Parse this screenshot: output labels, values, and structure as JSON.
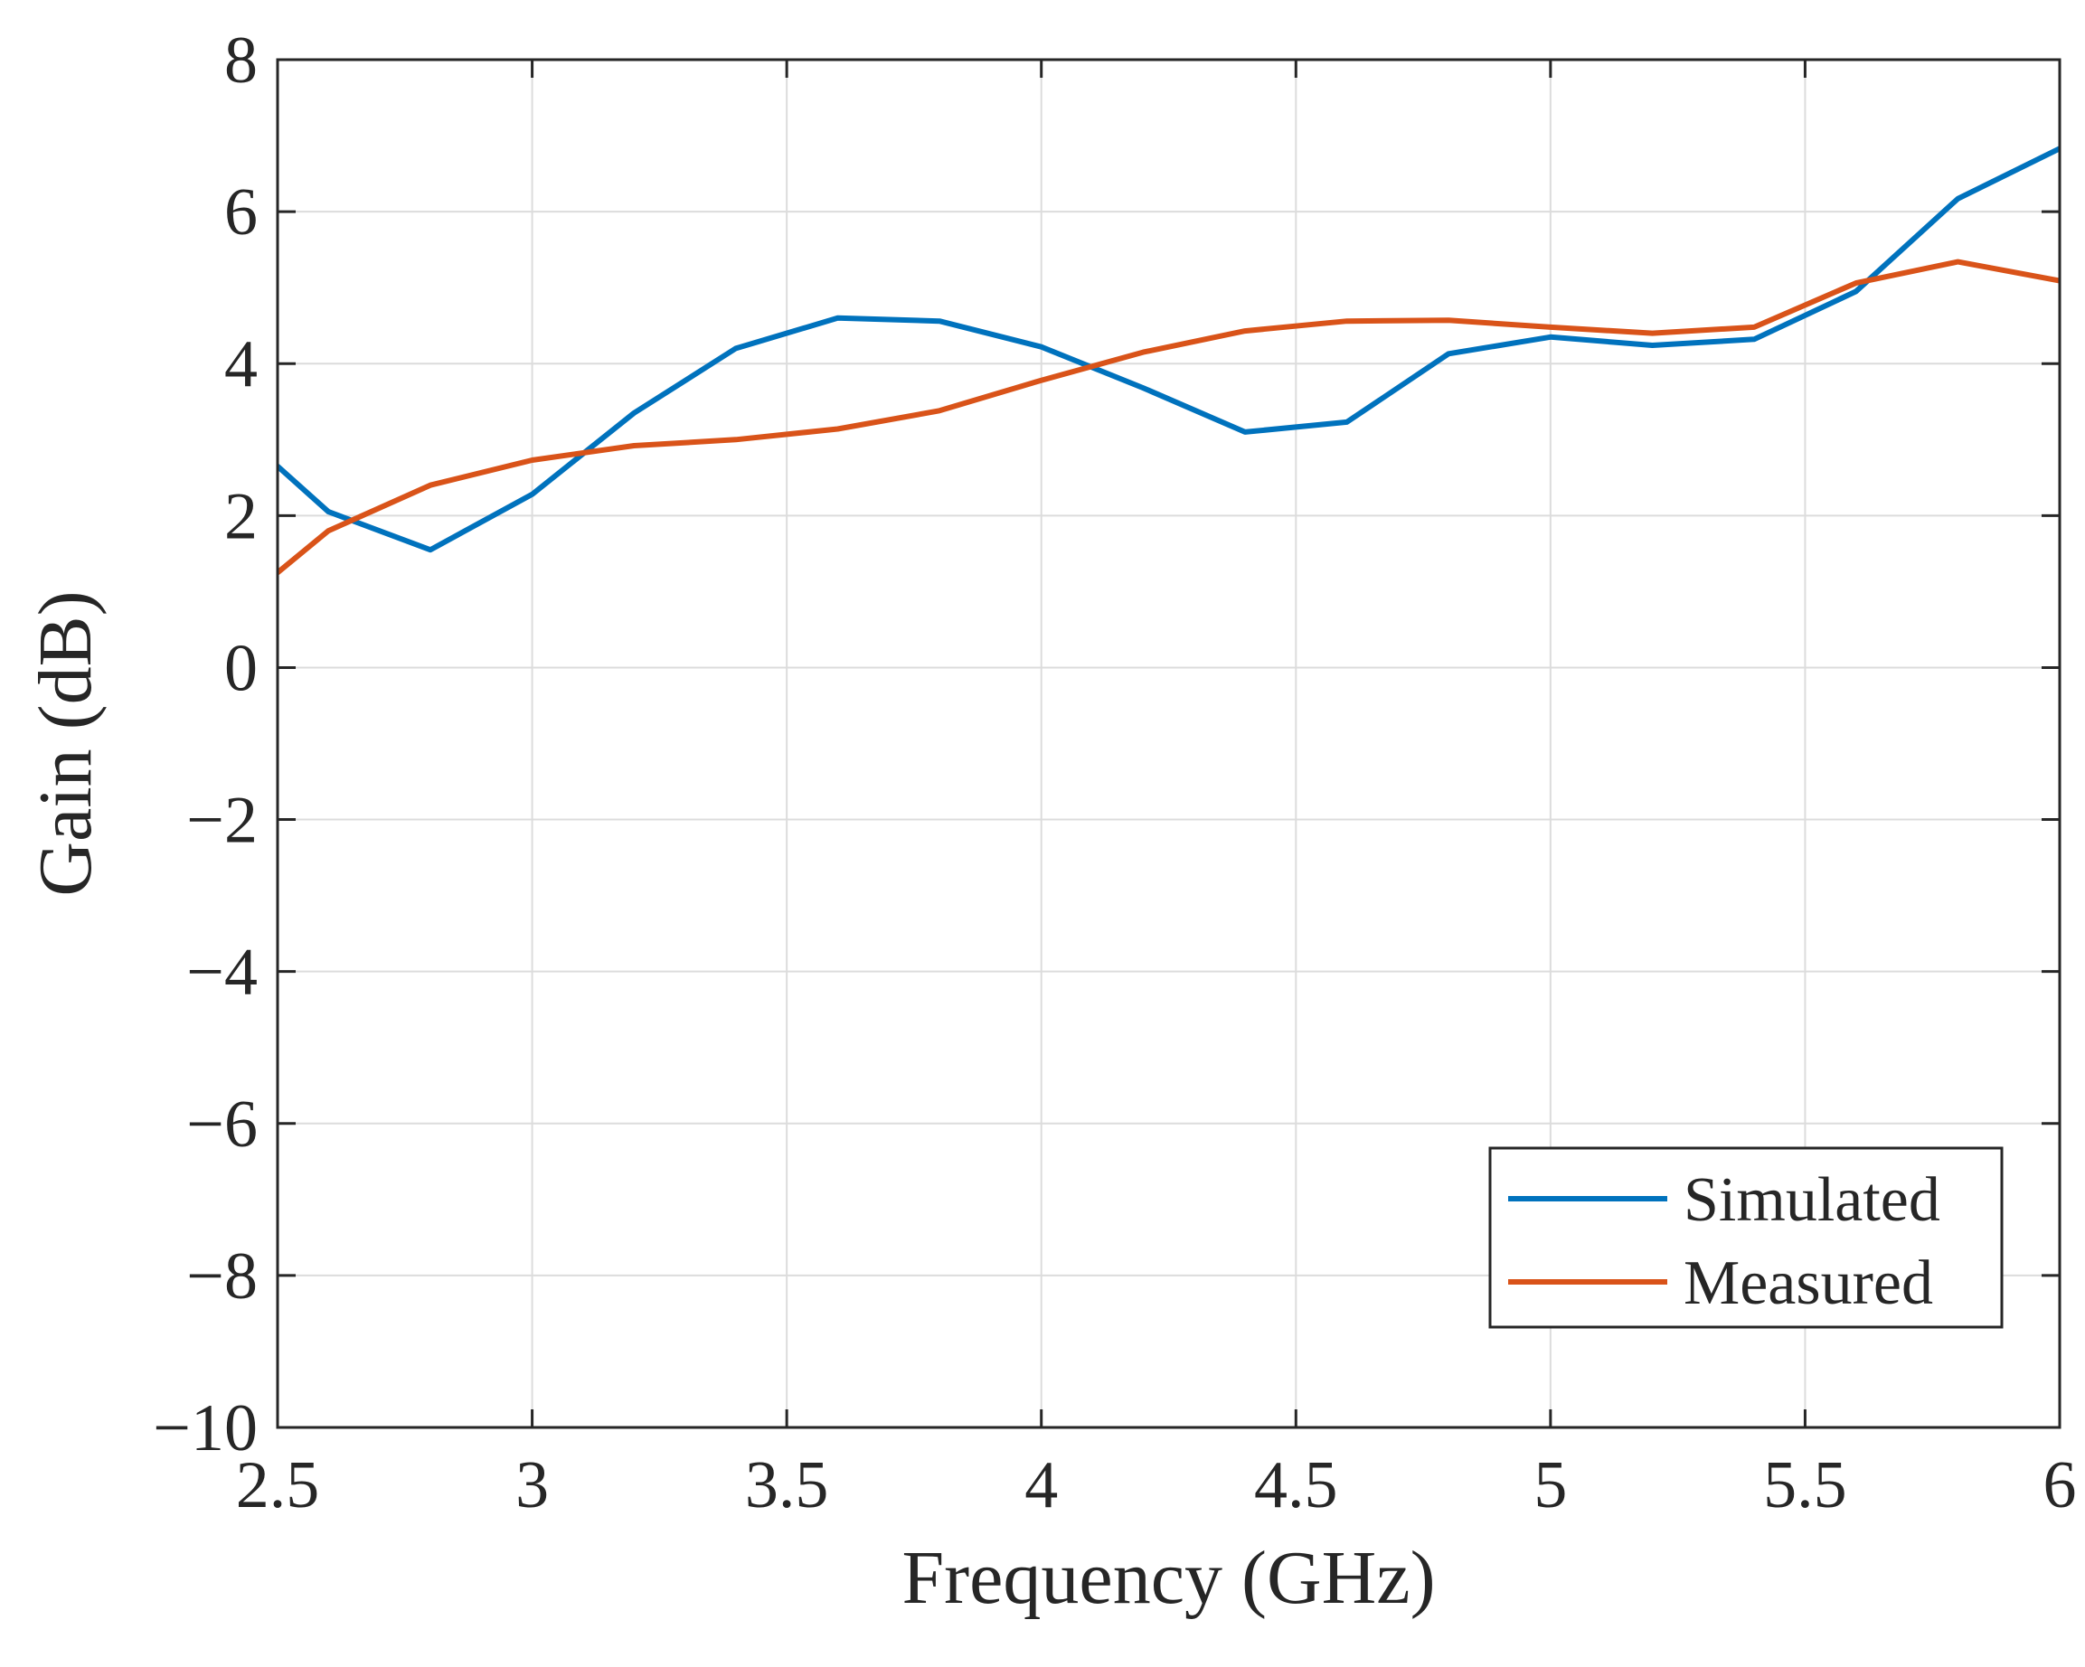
{
  "chart_data": {
    "type": "line",
    "title": "",
    "xlabel": "Frequency (GHz)",
    "ylabel": "Gain (dB)",
    "xlim": [
      2.5,
      6
    ],
    "ylim": [
      -10,
      8
    ],
    "grid": true,
    "x_ticks": [
      2.5,
      3,
      3.5,
      4,
      4.5,
      5,
      5.5,
      6
    ],
    "x_tick_labels": [
      "2.5",
      "3",
      "3.5",
      "4",
      "4.5",
      "5",
      "5.5",
      "6"
    ],
    "y_ticks": [
      -10,
      -8,
      -6,
      -4,
      -2,
      0,
      2,
      4,
      6,
      8
    ],
    "y_tick_labels": [
      "−10",
      "−8",
      "−6",
      "−4",
      "−2",
      "0",
      "2",
      "4",
      "6",
      "8"
    ],
    "legend_position": "bottom-right",
    "series": [
      {
        "name": "Simulated",
        "color": "#0072BD",
        "x": [
          2.5,
          2.6,
          2.8,
          3.0,
          3.2,
          3.4,
          3.6,
          3.8,
          4.0,
          4.2,
          4.4,
          4.6,
          4.8,
          5.0,
          5.2,
          5.4,
          5.6,
          5.8,
          6.0
        ],
        "y": [
          2.65,
          2.05,
          1.55,
          2.28,
          3.35,
          4.2,
          4.6,
          4.56,
          4.22,
          3.68,
          3.1,
          3.23,
          4.13,
          4.35,
          4.24,
          4.32,
          4.95,
          6.17,
          6.83
        ]
      },
      {
        "name": "Measured",
        "color": "#D95319",
        "x": [
          2.5,
          2.6,
          2.8,
          3.0,
          3.2,
          3.4,
          3.6,
          3.8,
          4.0,
          4.2,
          4.4,
          4.6,
          4.8,
          5.0,
          5.2,
          5.4,
          5.6,
          5.8,
          6.0
        ],
        "y": [
          1.25,
          1.8,
          2.4,
          2.73,
          2.92,
          3.0,
          3.14,
          3.38,
          3.78,
          4.15,
          4.43,
          4.56,
          4.57,
          4.48,
          4.4,
          4.48,
          5.06,
          5.34,
          5.09
        ]
      }
    ]
  }
}
